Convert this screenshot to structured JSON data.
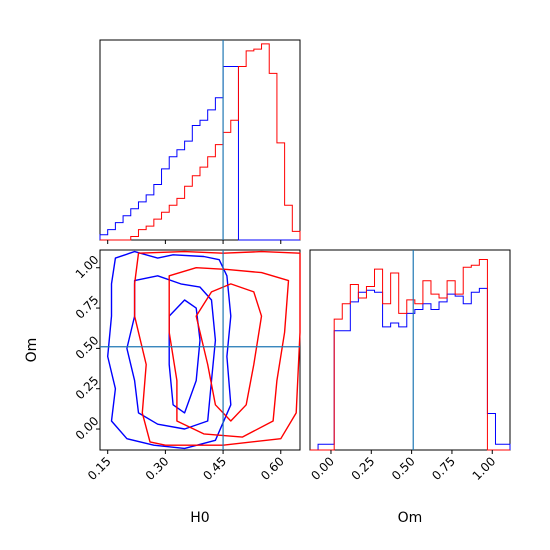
{
  "chart_data": [
    {
      "type": "histogram",
      "panel": "H0 marginal",
      "xlim": [
        0.13,
        0.65
      ],
      "bin_edges": [
        0.13,
        0.15,
        0.17,
        0.19,
        0.21,
        0.23,
        0.25,
        0.27,
        0.29,
        0.31,
        0.33,
        0.35,
        0.37,
        0.39,
        0.41,
        0.43,
        0.45,
        0.47,
        0.49,
        0.51,
        0.53,
        0.55,
        0.57,
        0.59,
        0.61,
        0.63,
        0.65
      ],
      "truth_line": 0.45,
      "series": [
        {
          "color": "#0000ff",
          "values": [
            3,
            6,
            10,
            14,
            18,
            22,
            26,
            32,
            41,
            48,
            52,
            57,
            66,
            69,
            75,
            82,
            100,
            100,
            0,
            0,
            0,
            0,
            0,
            0,
            0,
            0
          ]
        },
        {
          "color": "#ff0000",
          "values": [
            0,
            0,
            0,
            0,
            2,
            6,
            8,
            12,
            16,
            20,
            24,
            31,
            37,
            42,
            48,
            55,
            62,
            69,
            100,
            109,
            110,
            113,
            96,
            56,
            20,
            5
          ]
        }
      ]
    },
    {
      "type": "contour",
      "panel": "Om vs H0",
      "xlabel": "H0",
      "ylabel": "Om",
      "xlim": [
        0.13,
        0.65
      ],
      "ylim": [
        -0.13,
        1.11
      ],
      "xticks": [
        "0.15",
        "0.30",
        "0.45",
        "0.60"
      ],
      "yticks": [
        "0.00",
        "0.25",
        "0.50",
        "0.75",
        "1.00"
      ],
      "truth": {
        "H0": 0.45,
        "Om": 0.51
      },
      "series": [
        {
          "color": "#0000ff",
          "contours": [
            [
              [
                0.17,
                1.06
              ],
              [
                0.22,
                1.1
              ],
              [
                0.28,
                1.06
              ],
              [
                0.32,
                1.08
              ],
              [
                0.4,
                1.07
              ],
              [
                0.44,
                1.05
              ],
              [
                0.46,
                0.95
              ],
              [
                0.47,
                0.7
              ],
              [
                0.46,
                0.45
              ],
              [
                0.47,
                0.15
              ],
              [
                0.43,
                -0.07
              ],
              [
                0.35,
                -0.12
              ],
              [
                0.27,
                -0.1
              ],
              [
                0.2,
                -0.06
              ],
              [
                0.16,
                0.05
              ],
              [
                0.17,
                0.25
              ],
              [
                0.15,
                0.45
              ],
              [
                0.16,
                0.7
              ],
              [
                0.16,
                0.9
              ]
            ],
            [
              [
                0.22,
                0.92
              ],
              [
                0.28,
                0.95
              ],
              [
                0.34,
                0.9
              ],
              [
                0.39,
                0.88
              ],
              [
                0.42,
                0.8
              ],
              [
                0.43,
                0.55
              ],
              [
                0.42,
                0.3
              ],
              [
                0.41,
                0.05
              ],
              [
                0.35,
                0.0
              ],
              [
                0.28,
                0.03
              ],
              [
                0.23,
                0.1
              ],
              [
                0.22,
                0.3
              ],
              [
                0.2,
                0.5
              ],
              [
                0.22,
                0.7
              ]
            ],
            [
              [
                0.31,
                0.7
              ],
              [
                0.35,
                0.8
              ],
              [
                0.38,
                0.75
              ],
              [
                0.39,
                0.55
              ],
              [
                0.38,
                0.3
              ],
              [
                0.35,
                0.1
              ],
              [
                0.32,
                0.15
              ],
              [
                0.31,
                0.4
              ]
            ]
          ]
        },
        {
          "color": "#ff0000",
          "contours": [
            [
              [
                0.23,
                1.09
              ],
              [
                0.35,
                1.1
              ],
              [
                0.45,
                1.09
              ],
              [
                0.55,
                1.1
              ],
              [
                0.65,
                1.09
              ],
              [
                0.65,
                0.6
              ],
              [
                0.64,
                0.1
              ],
              [
                0.6,
                -0.06
              ],
              [
                0.45,
                -0.1
              ],
              [
                0.3,
                -0.1
              ],
              [
                0.26,
                -0.08
              ],
              [
                0.24,
                0.1
              ],
              [
                0.25,
                0.4
              ],
              [
                0.22,
                0.7
              ],
              [
                0.22,
                0.9
              ]
            ],
            [
              [
                0.31,
                0.95
              ],
              [
                0.38,
                1.0
              ],
              [
                0.46,
                0.99
              ],
              [
                0.55,
                0.97
              ],
              [
                0.62,
                0.92
              ],
              [
                0.61,
                0.6
              ],
              [
                0.59,
                0.3
              ],
              [
                0.58,
                0.05
              ],
              [
                0.5,
                -0.05
              ],
              [
                0.4,
                -0.03
              ],
              [
                0.33,
                0.05
              ],
              [
                0.33,
                0.3
              ],
              [
                0.31,
                0.6
              ]
            ],
            [
              [
                0.38,
                0.7
              ],
              [
                0.42,
                0.85
              ],
              [
                0.47,
                0.9
              ],
              [
                0.53,
                0.85
              ],
              [
                0.55,
                0.7
              ],
              [
                0.53,
                0.4
              ],
              [
                0.51,
                0.15
              ],
              [
                0.47,
                0.05
              ],
              [
                0.43,
                0.15
              ],
              [
                0.41,
                0.4
              ]
            ]
          ]
        }
      ]
    },
    {
      "type": "histogram",
      "panel": "Om marginal",
      "xlabel": "Om",
      "xlim": [
        -0.13,
        1.11
      ],
      "xticks": [
        "0.00",
        "0.25",
        "0.50",
        "0.75",
        "1.00"
      ],
      "bin_edges": [
        -0.13,
        -0.08,
        -0.03,
        0.02,
        0.07,
        0.12,
        0.17,
        0.22,
        0.27,
        0.32,
        0.37,
        0.42,
        0.47,
        0.52,
        0.57,
        0.62,
        0.67,
        0.72,
        0.77,
        0.82,
        0.87,
        0.92,
        0.97,
        1.02,
        1.07,
        1.11
      ],
      "truth_line": 0.51,
      "series": [
        {
          "color": "#0000ff",
          "values": [
            0,
            3,
            3,
            62,
            62,
            77,
            82,
            83,
            82,
            64,
            66,
            64,
            71,
            73,
            76,
            73,
            77,
            81,
            80,
            76,
            82,
            84,
            19,
            3,
            3
          ]
        },
        {
          "color": "#ff0000",
          "values": [
            0,
            0,
            0,
            68,
            76,
            86,
            79,
            85,
            94,
            76,
            92,
            71,
            78,
            76,
            88,
            81,
            79,
            88,
            81,
            95,
            96,
            99,
            0,
            0,
            0
          ]
        }
      ]
    }
  ]
}
